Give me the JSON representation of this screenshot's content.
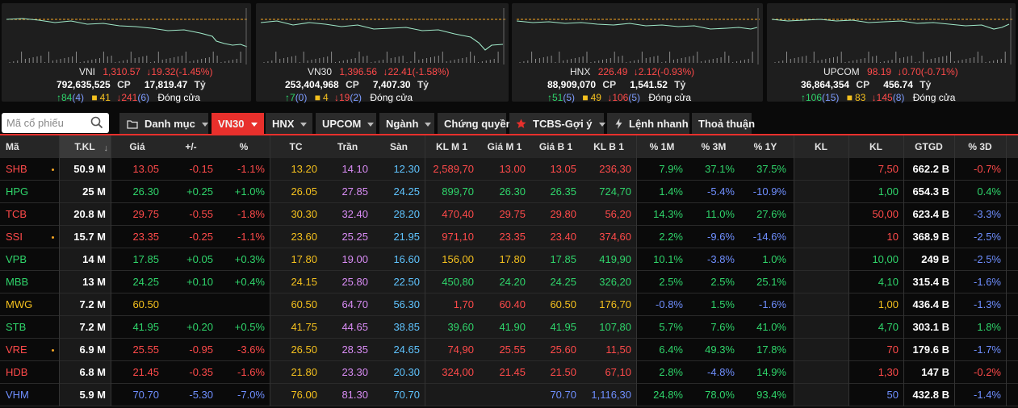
{
  "indices": [
    {
      "name": "VNI",
      "value": "1,310.57",
      "change": "19.32(-1.45%)",
      "volume": "792,635,525",
      "vol_unit": "CP",
      "turnover": "17,819.47",
      "to_unit": "Tỷ",
      "up": "84",
      "up_ceil": "(4)",
      "flat": "41",
      "down": "241",
      "down_floor": "(6)",
      "status": "Đóng cửa"
    },
    {
      "name": "VN30",
      "value": "1,396.56",
      "change": "22.41(-1.58%)",
      "volume": "253,404,968",
      "vol_unit": "CP",
      "turnover": "7,407.30",
      "to_unit": "Tỷ",
      "up": "7",
      "up_ceil": "(0)",
      "flat": "4",
      "down": "19",
      "down_floor": "(2)",
      "status": "Đóng cửa"
    },
    {
      "name": "HNX",
      "value": "226.49",
      "change": "2.12(-0.93%)",
      "volume": "88,909,070",
      "vol_unit": "CP",
      "turnover": "1,541.52",
      "to_unit": "Tỷ",
      "up": "51",
      "up_ceil": "(5)",
      "flat": "49",
      "down": "106",
      "down_floor": "(5)",
      "status": "Đóng cửa"
    },
    {
      "name": "UPCOM",
      "value": "98.19",
      "change": "0.70(-0.71%)",
      "volume": "36,864,354",
      "vol_unit": "CP",
      "turnover": "456.74",
      "to_unit": "Tỷ",
      "up": "106",
      "up_ceil": "(15)",
      "flat": "83",
      "down": "145",
      "down_floor": "(8)",
      "status": "Đóng cửa"
    }
  ],
  "toolbar": {
    "search_placeholder": "Mã cổ phiếu",
    "tabs": [
      "Danh mục",
      "VN30",
      "HNX",
      "UPCOM",
      "Ngành",
      "Chứng quyền",
      "TCBS-Gợi ý",
      "Lệnh nhanh",
      "Thoả thuận"
    ]
  },
  "table": {
    "headers": [
      "Mã",
      "T.KL",
      "Giá",
      "+/-",
      "%",
      "TC",
      "Trần",
      "Sàn",
      "KL M 1",
      "Giá M 1",
      "Giá B 1",
      "KL B 1",
      "% 1M",
      "% 3M",
      "% 1Y",
      "KL",
      "KL",
      "GTGD",
      "% 3D"
    ],
    "rows": [
      {
        "sym": "SHB",
        "dot": true,
        "tkl": "50.9 M",
        "gia": "13.05",
        "chg": "-0.15",
        "pct": "-1.1%",
        "tc": "13.20",
        "tran": "14.10",
        "san": "12.30",
        "klm1": "2,589,70",
        "giam1": "13.00",
        "giab1": "13.05",
        "klb1": "236,30",
        "p1m": "7.9%",
        "p3m": "37.1%",
        "p1y": "37.5%",
        "kl1": "",
        "kl2": "7,50",
        "gtgd": "662.2 B",
        "p3d": "-0.7%",
        "c": "r",
        "cm1": "r",
        "cb1": "r",
        "c1m": "g",
        "c3m": "g",
        "c1y": "g",
        "ck2": "r",
        "c3d": "r"
      },
      {
        "sym": "HPG",
        "dot": false,
        "tkl": "25 M",
        "gia": "26.30",
        "chg": "+0.25",
        "pct": "+1.0%",
        "tc": "26.05",
        "tran": "27.85",
        "san": "24.25",
        "klm1": "899,70",
        "giam1": "26.30",
        "giab1": "26.35",
        "klb1": "724,70",
        "p1m": "1.4%",
        "p3m": "-5.4%",
        "p1y": "-10.9%",
        "kl1": "",
        "kl2": "1,00",
        "gtgd": "654.3 B",
        "p3d": "0.4%",
        "c": "g",
        "cm1": "g",
        "cb1": "g",
        "c1m": "g",
        "c3m": "b",
        "c1y": "b",
        "ck2": "g",
        "c3d": "g"
      },
      {
        "sym": "TCB",
        "dot": false,
        "tkl": "20.8 M",
        "gia": "29.75",
        "chg": "-0.55",
        "pct": "-1.8%",
        "tc": "30.30",
        "tran": "32.40",
        "san": "28.20",
        "klm1": "470,40",
        "giam1": "29.75",
        "giab1": "29.80",
        "klb1": "56,20",
        "p1m": "14.3%",
        "p3m": "11.0%",
        "p1y": "27.6%",
        "kl1": "",
        "kl2": "50,00",
        "gtgd": "623.4 B",
        "p3d": "-3.3%",
        "c": "r",
        "cm1": "r",
        "cb1": "r",
        "c1m": "g",
        "c3m": "g",
        "c1y": "g",
        "ck2": "r",
        "c3d": "b"
      },
      {
        "sym": "SSI",
        "dot": true,
        "tkl": "15.7 M",
        "gia": "23.35",
        "chg": "-0.25",
        "pct": "-1.1%",
        "tc": "23.60",
        "tran": "25.25",
        "san": "21.95",
        "klm1": "971,10",
        "giam1": "23.35",
        "giab1": "23.40",
        "klb1": "374,60",
        "p1m": "2.2%",
        "p3m": "-9.6%",
        "p1y": "-14.6%",
        "kl1": "",
        "kl2": "10",
        "gtgd": "368.9 B",
        "p3d": "-2.5%",
        "c": "r",
        "cm1": "r",
        "cb1": "r",
        "c1m": "g",
        "c3m": "b",
        "c1y": "b",
        "ck2": "r",
        "c3d": "b"
      },
      {
        "sym": "VPB",
        "dot": false,
        "tkl": "14 M",
        "gia": "17.85",
        "chg": "+0.05",
        "pct": "+0.3%",
        "tc": "17.80",
        "tran": "19.00",
        "san": "16.60",
        "klm1": "156,00",
        "giam1": "17.80",
        "giab1": "17.85",
        "klb1": "419,90",
        "p1m": "10.1%",
        "p3m": "-3.8%",
        "p1y": "1.0%",
        "kl1": "",
        "kl2": "10,00",
        "gtgd": "249 B",
        "p3d": "-2.5%",
        "c": "g",
        "cm1": "y",
        "cb1": "g",
        "c1m": "g",
        "c3m": "b",
        "c1y": "g",
        "ck2": "g",
        "c3d": "b"
      },
      {
        "sym": "MBB",
        "dot": false,
        "tkl": "13 M",
        "gia": "24.25",
        "chg": "+0.10",
        "pct": "+0.4%",
        "tc": "24.15",
        "tran": "25.80",
        "san": "22.50",
        "klm1": "450,80",
        "giam1": "24.20",
        "giab1": "24.25",
        "klb1": "326,20",
        "p1m": "2.5%",
        "p3m": "2.5%",
        "p1y": "25.1%",
        "kl1": "",
        "kl2": "4,10",
        "gtgd": "315.4 B",
        "p3d": "-1.6%",
        "c": "g",
        "cm1": "g",
        "cb1": "g",
        "c1m": "g",
        "c3m": "g",
        "c1y": "g",
        "ck2": "g",
        "c3d": "b"
      },
      {
        "sym": "MWG",
        "dot": false,
        "tkl": "7.2 M",
        "gia": "60.50",
        "chg": "",
        "pct": "",
        "tc": "60.50",
        "tran": "64.70",
        "san": "56.30",
        "klm1": "1,70",
        "giam1": "60.40",
        "giab1": "60.50",
        "klb1": "176,70",
        "p1m": "-0.8%",
        "p3m": "1.5%",
        "p1y": "-1.6%",
        "kl1": "",
        "kl2": "1,00",
        "gtgd": "436.4 B",
        "p3d": "-1.3%",
        "c": "y",
        "cm1": "r",
        "cb1": "y",
        "c1m": "b",
        "c3m": "g",
        "c1y": "b",
        "ck2": "y",
        "c3d": "b"
      },
      {
        "sym": "STB",
        "dot": false,
        "tkl": "7.2 M",
        "gia": "41.95",
        "chg": "+0.20",
        "pct": "+0.5%",
        "tc": "41.75",
        "tran": "44.65",
        "san": "38.85",
        "klm1": "39,60",
        "giam1": "41.90",
        "giab1": "41.95",
        "klb1": "107,80",
        "p1m": "5.7%",
        "p3m": "7.6%",
        "p1y": "41.0%",
        "kl1": "",
        "kl2": "4,70",
        "gtgd": "303.1 B",
        "p3d": "1.8%",
        "c": "g",
        "cm1": "g",
        "cb1": "g",
        "c1m": "g",
        "c3m": "g",
        "c1y": "g",
        "ck2": "g",
        "c3d": "g"
      },
      {
        "sym": "VRE",
        "dot": true,
        "tkl": "6.9 M",
        "gia": "25.55",
        "chg": "-0.95",
        "pct": "-3.6%",
        "tc": "26.50",
        "tran": "28.35",
        "san": "24.65",
        "klm1": "74,90",
        "giam1": "25.55",
        "giab1": "25.60",
        "klb1": "11,50",
        "p1m": "6.4%",
        "p3m": "49.3%",
        "p1y": "17.8%",
        "kl1": "",
        "kl2": "70",
        "gtgd": "179.6 B",
        "p3d": "-1.7%",
        "c": "r",
        "cm1": "r",
        "cb1": "r",
        "c1m": "g",
        "c3m": "g",
        "c1y": "g",
        "ck2": "r",
        "c3d": "b"
      },
      {
        "sym": "HDB",
        "dot": false,
        "tkl": "6.8 M",
        "gia": "21.45",
        "chg": "-0.35",
        "pct": "-1.6%",
        "tc": "21.80",
        "tran": "23.30",
        "san": "20.30",
        "klm1": "324,00",
        "giam1": "21.45",
        "giab1": "21.50",
        "klb1": "67,10",
        "p1m": "2.8%",
        "p3m": "-4.8%",
        "p1y": "14.9%",
        "kl1": "",
        "kl2": "1,30",
        "gtgd": "147 B",
        "p3d": "-0.2%",
        "c": "r",
        "cm1": "r",
        "cb1": "r",
        "c1m": "g",
        "c3m": "b",
        "c1y": "g",
        "ck2": "r",
        "c3d": "r"
      },
      {
        "sym": "VHM",
        "dot": false,
        "tkl": "5.9 M",
        "gia": "70.70",
        "chg": "-5.30",
        "pct": "-7.0%",
        "tc": "76.00",
        "tran": "81.30",
        "san": "70.70",
        "klm1": "",
        "giam1": "",
        "giab1": "70.70",
        "klb1": "1,116,30",
        "p1m": "24.8%",
        "p3m": "78.0%",
        "p1y": "93.4%",
        "kl1": "",
        "kl2": "50",
        "gtgd": "432.8 B",
        "p3d": "-1.4%",
        "c": "b",
        "cm1": "b",
        "cb1": "b",
        "c1m": "g",
        "c3m": "g",
        "c1y": "g",
        "ck2": "b",
        "c3d": "b"
      }
    ]
  },
  "colors": {
    "r": "#ff4a4a",
    "g": "#2fd56b",
    "y": "#f5c11e",
    "b": "#6f8fff",
    "ceil": "#d98cf5",
    "floor": "#5fc4ff",
    "ref": "#f5c11e",
    "accent": "#e8302c"
  }
}
